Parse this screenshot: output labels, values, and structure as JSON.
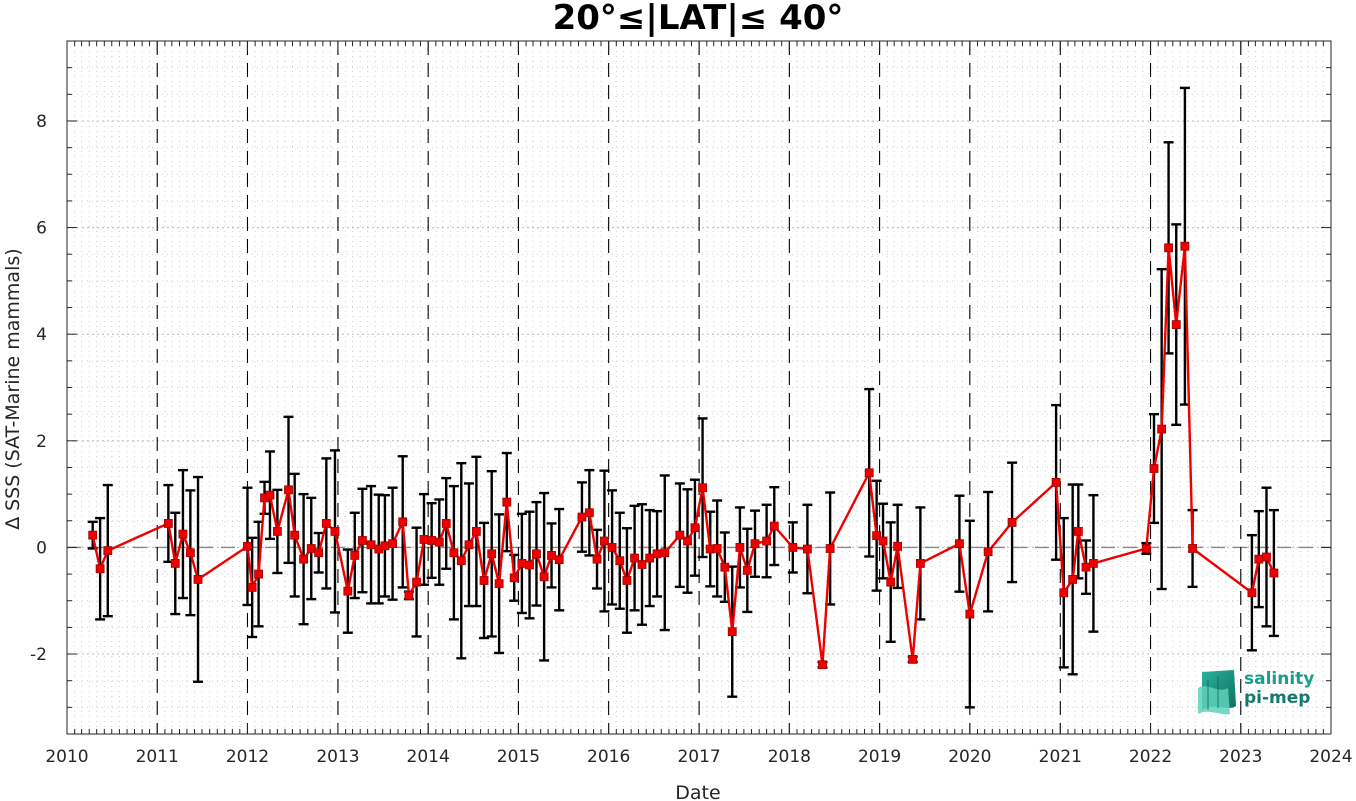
{
  "chart_data": {
    "type": "line",
    "title": "20°≤|LAT|≤ 40°",
    "xlabel": "Date",
    "ylabel": "∆ SSS (SAT-Marine mammals)",
    "xlim": [
      "2010-01-01",
      "2024-01-01"
    ],
    "ylim": [
      -3.5,
      9.5
    ],
    "x_ticks": [
      "2010",
      "2011",
      "2012",
      "2013",
      "2014",
      "2015",
      "2016",
      "2017",
      "2018",
      "2019",
      "2020",
      "2021",
      "2022",
      "2023",
      "2024"
    ],
    "y_ticks": [
      -2,
      0,
      2,
      4,
      6,
      8
    ],
    "grid": true,
    "year_boundaries": "dashed",
    "zero_line": "dashed",
    "series": [
      {
        "color": "#ee0000",
        "errorbar_color": "#000000",
        "marker": "square",
        "points": [
          {
            "x": "2010-04-15",
            "y": 0.23,
            "err": 0.25
          },
          {
            "x": "2010-05-15",
            "y": -0.4,
            "err": 0.95
          },
          {
            "x": "2010-06-15",
            "y": -0.06,
            "err": 1.23
          },
          {
            "x": "2011-02-15",
            "y": 0.45,
            "err": 0.72
          },
          {
            "x": "2011-03-15",
            "y": -0.3,
            "err": 0.95
          },
          {
            "x": "2011-04-15",
            "y": 0.25,
            "err": 1.2
          },
          {
            "x": "2011-05-15",
            "y": -0.1,
            "err": 1.17
          },
          {
            "x": "2011-06-15",
            "y": -0.6,
            "err": 1.92
          },
          {
            "x": "2012-01-01",
            "y": 0.02,
            "err": 1.1
          },
          {
            "x": "2012-01-20",
            "y": -0.75,
            "err": 0.93
          },
          {
            "x": "2012-02-15",
            "y": -0.5,
            "err": 0.98
          },
          {
            "x": "2012-03-10",
            "y": 0.93,
            "err": 0.3
          },
          {
            "x": "2012-04-01",
            "y": 0.98,
            "err": 0.82
          },
          {
            "x": "2012-05-01",
            "y": 0.3,
            "err": 0.78
          },
          {
            "x": "2012-06-15",
            "y": 1.08,
            "err": 1.37
          },
          {
            "x": "2012-07-10",
            "y": 0.23,
            "err": 1.15
          },
          {
            "x": "2012-08-15",
            "y": -0.22,
            "err": 1.22
          },
          {
            "x": "2012-09-15",
            "y": -0.02,
            "err": 0.95
          },
          {
            "x": "2012-10-15",
            "y": -0.1,
            "err": 0.37
          },
          {
            "x": "2012-11-15",
            "y": 0.45,
            "err": 1.22
          },
          {
            "x": "2012-12-20",
            "y": 0.3,
            "err": 1.52
          },
          {
            "x": "2013-02-10",
            "y": -0.82,
            "err": 0.78
          },
          {
            "x": "2013-03-10",
            "y": -0.15,
            "err": 0.8
          },
          {
            "x": "2013-04-10",
            "y": 0.13,
            "err": 0.97
          },
          {
            "x": "2013-05-15",
            "y": 0.05,
            "err": 1.1
          },
          {
            "x": "2013-06-15",
            "y": -0.03,
            "err": 1.02
          },
          {
            "x": "2013-07-10",
            "y": 0.03,
            "err": 0.95
          },
          {
            "x": "2013-08-10",
            "y": 0.07,
            "err": 1.05
          },
          {
            "x": "2013-09-20",
            "y": 0.48,
            "err": 1.23
          },
          {
            "x": "2013-10-15",
            "y": -0.9,
            "err": 0.07
          },
          {
            "x": "2013-11-15",
            "y": -0.65,
            "err": 1.02
          },
          {
            "x": "2013-12-15",
            "y": 0.15,
            "err": 0.85
          },
          {
            "x": "2014-01-15",
            "y": 0.13,
            "err": 0.7
          },
          {
            "x": "2014-02-15",
            "y": 0.1,
            "err": 0.8
          },
          {
            "x": "2014-03-15",
            "y": 0.45,
            "err": 0.85
          },
          {
            "x": "2014-04-15",
            "y": -0.1,
            "err": 1.25
          },
          {
            "x": "2014-05-15",
            "y": -0.25,
            "err": 1.83
          },
          {
            "x": "2014-06-15",
            "y": 0.05,
            "err": 1.15
          },
          {
            "x": "2014-07-15",
            "y": 0.3,
            "err": 1.4
          },
          {
            "x": "2014-08-15",
            "y": -0.62,
            "err": 1.08
          },
          {
            "x": "2014-09-15",
            "y": -0.12,
            "err": 1.55
          },
          {
            "x": "2014-10-15",
            "y": -0.68,
            "err": 1.3
          },
          {
            "x": "2014-11-15",
            "y": 0.85,
            "err": 0.92
          },
          {
            "x": "2014-12-15",
            "y": -0.57,
            "err": 0.43
          },
          {
            "x": "2015-01-15",
            "y": -0.3,
            "err": 0.93
          },
          {
            "x": "2015-02-15",
            "y": -0.33,
            "err": 1.0
          },
          {
            "x": "2015-03-15",
            "y": -0.12,
            "err": 0.97
          },
          {
            "x": "2015-04-15",
            "y": -0.55,
            "err": 1.57
          },
          {
            "x": "2015-05-15",
            "y": -0.15,
            "err": 0.6
          },
          {
            "x": "2015-06-15",
            "y": -0.23,
            "err": 0.95
          },
          {
            "x": "2015-09-15",
            "y": 0.57,
            "err": 0.65
          },
          {
            "x": "2015-10-15",
            "y": 0.65,
            "err": 0.8
          },
          {
            "x": "2015-11-15",
            "y": -0.22,
            "err": 0.55
          },
          {
            "x": "2015-12-15",
            "y": 0.12,
            "err": 1.32
          },
          {
            "x": "2016-01-15",
            "y": 0.0,
            "err": 1.07
          },
          {
            "x": "2016-02-15",
            "y": -0.25,
            "err": 0.9
          },
          {
            "x": "2016-03-15",
            "y": -0.62,
            "err": 0.98
          },
          {
            "x": "2016-04-15",
            "y": -0.2,
            "err": 0.98
          },
          {
            "x": "2016-05-15",
            "y": -0.32,
            "err": 1.13
          },
          {
            "x": "2016-06-15",
            "y": -0.2,
            "err": 0.9
          },
          {
            "x": "2016-07-15",
            "y": -0.12,
            "err": 0.8
          },
          {
            "x": "2016-08-15",
            "y": -0.1,
            "err": 1.45
          },
          {
            "x": "2016-10-15",
            "y": 0.23,
            "err": 0.97
          },
          {
            "x": "2016-11-15",
            "y": 0.12,
            "err": 0.97
          },
          {
            "x": "2016-12-15",
            "y": 0.37,
            "err": 0.9
          },
          {
            "x": "2017-01-15",
            "y": 1.12,
            "err": 1.3
          },
          {
            "x": "2017-02-15",
            "y": -0.03,
            "err": 0.7
          },
          {
            "x": "2017-03-15",
            "y": -0.02,
            "err": 0.9
          },
          {
            "x": "2017-04-15",
            "y": -0.37,
            "err": 0.65
          },
          {
            "x": "2017-05-15",
            "y": -1.58,
            "err": 1.22
          },
          {
            "x": "2017-06-15",
            "y": 0.0,
            "err": 0.75
          },
          {
            "x": "2017-07-15",
            "y": -0.43,
            "err": 0.78
          },
          {
            "x": "2017-08-15",
            "y": 0.07,
            "err": 0.62
          },
          {
            "x": "2017-10-01",
            "y": 0.12,
            "err": 0.68
          },
          {
            "x": "2017-11-01",
            "y": 0.4,
            "err": 0.73
          },
          {
            "x": "2018-01-15",
            "y": 0.0,
            "err": 0.47
          },
          {
            "x": "2018-03-15",
            "y": -0.03,
            "err": 0.83
          },
          {
            "x": "2018-05-15",
            "y": -2.2,
            "err": 0.05
          },
          {
            "x": "2018-06-15",
            "y": -0.02,
            "err": 1.05
          },
          {
            "x": "2018-11-20",
            "y": 1.4,
            "err": 1.57
          },
          {
            "x": "2018-12-20",
            "y": 0.22,
            "err": 1.03
          },
          {
            "x": "2019-01-15",
            "y": 0.12,
            "err": 0.7
          },
          {
            "x": "2019-02-15",
            "y": -0.65,
            "err": 1.12
          },
          {
            "x": "2019-03-15",
            "y": 0.02,
            "err": 0.78
          },
          {
            "x": "2019-05-15",
            "y": -2.1,
            "err": 0.05
          },
          {
            "x": "2019-06-15",
            "y": -0.3,
            "err": 1.05
          },
          {
            "x": "2019-11-20",
            "y": 0.07,
            "err": 0.9
          },
          {
            "x": "2020-01-01",
            "y": -1.25,
            "err": 1.75
          },
          {
            "x": "2020-03-15",
            "y": -0.08,
            "err": 1.12
          },
          {
            "x": "2020-06-20",
            "y": 0.47,
            "err": 1.12
          },
          {
            "x": "2020-12-15",
            "y": 1.22,
            "err": 1.45
          },
          {
            "x": "2021-01-15",
            "y": -0.85,
            "err": 1.4
          },
          {
            "x": "2021-02-20",
            "y": -0.6,
            "err": 1.78
          },
          {
            "x": "2021-03-15",
            "y": 0.3,
            "err": 0.88
          },
          {
            "x": "2021-04-15",
            "y": -0.37,
            "err": 0.5
          },
          {
            "x": "2021-05-15",
            "y": -0.3,
            "err": 1.28
          },
          {
            "x": "2021-12-15",
            "y": -0.02,
            "err": 0.1
          },
          {
            "x": "2022-01-15",
            "y": 1.48,
            "err": 1.02
          },
          {
            "x": "2022-02-15",
            "y": 2.22,
            "err": 3.0
          },
          {
            "x": "2022-03-15",
            "y": 5.62,
            "err": 1.98
          },
          {
            "x": "2022-04-15",
            "y": 4.18,
            "err": 1.88
          },
          {
            "x": "2022-05-20",
            "y": 5.65,
            "err": 2.97
          },
          {
            "x": "2022-06-20",
            "y": -0.02,
            "err": 0.72
          },
          {
            "x": "2023-02-15",
            "y": -0.85,
            "err": 1.08
          },
          {
            "x": "2023-03-15",
            "y": -0.22,
            "err": 0.9
          },
          {
            "x": "2023-04-15",
            "y": -0.18,
            "err": 1.3
          },
          {
            "x": "2023-05-15",
            "y": -0.48,
            "err": 1.18
          }
        ]
      }
    ]
  },
  "logo": {
    "line1": "salinity",
    "line2": "pi-mep"
  }
}
